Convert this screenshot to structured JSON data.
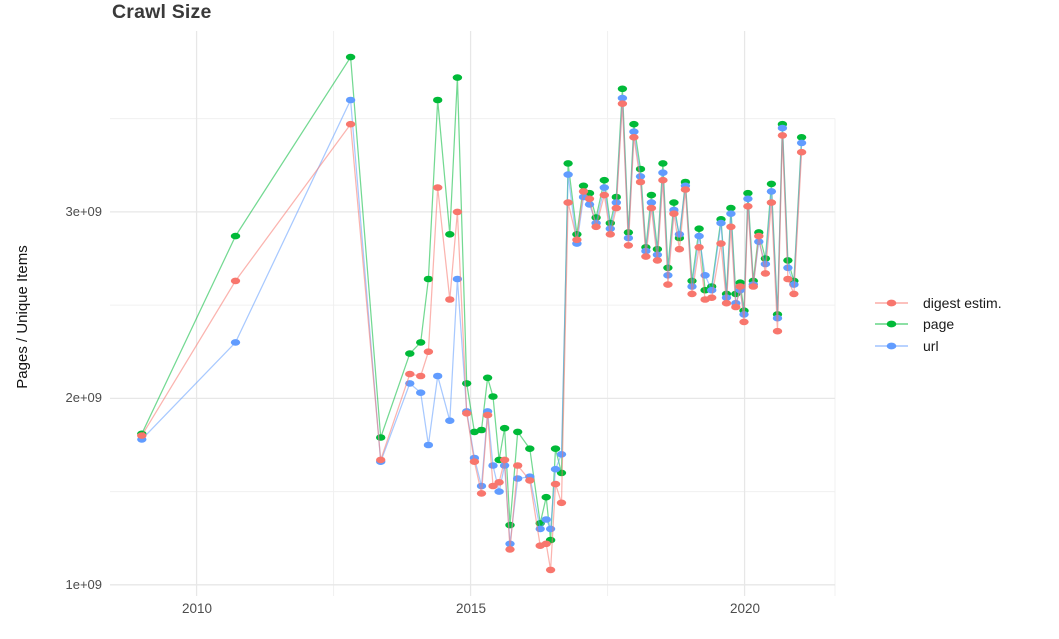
{
  "chart_data": {
    "type": "line",
    "title": "Crawl Size",
    "xlabel": "",
    "ylabel": "Pages / Unique Items",
    "y_unit": "1e+09 (billions of pages / unique items)",
    "legend_position": "right",
    "grid": true,
    "x_tick_labels": [
      "2010",
      "2015",
      "2020"
    ],
    "x_tick_values": [
      2010,
      2015,
      2020
    ],
    "y_tick_labels": [
      "1e+09",
      "2e+09",
      "3e+09"
    ],
    "y_tick_values": [
      1,
      2,
      3
    ],
    "x_minor_gridlines": [
      2012.5,
      2017.5
    ],
    "y_minor_gridlines": [
      1.5,
      2.5,
      3.5
    ],
    "xlim": [
      2008.42,
      2021.65
    ],
    "ylim": [
      0.94,
      3.97
    ],
    "x": [
      2009.0,
      2010.71,
      2012.81,
      2013.36,
      2013.89,
      2014.09,
      2014.23,
      2014.4,
      2014.62,
      2014.76,
      2014.93,
      2015.07,
      2015.2,
      2015.31,
      2015.41,
      2015.52,
      2015.62,
      2015.72,
      2015.86,
      2016.08,
      2016.27,
      2016.38,
      2016.46,
      2016.55,
      2016.66,
      2016.78,
      2016.94,
      2017.06,
      2017.17,
      2017.29,
      2017.44,
      2017.55,
      2017.66,
      2017.77,
      2017.88,
      2017.98,
      2018.1,
      2018.2,
      2018.3,
      2018.41,
      2018.51,
      2018.6,
      2018.71,
      2018.81,
      2018.92,
      2019.04,
      2019.17,
      2019.28,
      2019.4,
      2019.57,
      2019.67,
      2019.75,
      2019.84,
      2019.92,
      2019.99,
      2020.06,
      2020.16,
      2020.26,
      2020.38,
      2020.49,
      2020.6,
      2020.69,
      2020.79,
      2020.9,
      2021.04
    ],
    "series": [
      {
        "name": "digest estim.",
        "color": "#F8766D",
        "values": [
          1.8,
          2.63,
          3.47,
          1.67,
          2.13,
          2.12,
          2.25,
          3.13,
          2.53,
          3.0,
          1.92,
          1.66,
          1.49,
          1.91,
          1.53,
          1.55,
          1.67,
          1.19,
          1.64,
          1.56,
          1.21,
          1.22,
          1.08,
          1.54,
          1.44,
          3.05,
          2.85,
          3.11,
          3.07,
          2.92,
          3.09,
          2.88,
          3.02,
          3.58,
          2.82,
          3.4,
          3.16,
          2.76,
          3.02,
          2.74,
          3.17,
          2.61,
          2.99,
          2.8,
          3.12,
          2.56,
          2.81,
          2.53,
          2.54,
          2.83,
          2.51,
          2.92,
          2.49,
          2.6,
          2.41,
          3.03,
          2.6,
          2.87,
          2.67,
          3.05,
          2.36,
          3.41,
          2.64,
          2.56,
          3.32
        ]
      },
      {
        "name": "page",
        "color": "#00BA38",
        "values": [
          1.81,
          2.87,
          3.83,
          1.79,
          2.24,
          2.3,
          2.64,
          3.6,
          2.88,
          3.72,
          2.08,
          1.82,
          1.83,
          2.11,
          2.01,
          1.67,
          1.84,
          1.32,
          1.82,
          1.73,
          1.33,
          1.47,
          1.24,
          1.73,
          1.6,
          3.26,
          2.88,
          3.14,
          3.1,
          2.97,
          3.17,
          2.94,
          3.08,
          3.66,
          2.89,
          3.47,
          3.23,
          2.81,
          3.09,
          2.8,
          3.26,
          2.7,
          3.05,
          2.86,
          3.16,
          2.63,
          2.91,
          2.58,
          2.6,
          2.96,
          2.56,
          3.02,
          2.56,
          2.62,
          2.47,
          3.1,
          2.63,
          2.89,
          2.75,
          3.15,
          2.45,
          3.47,
          2.74,
          2.63,
          3.4
        ]
      },
      {
        "name": "url",
        "color": "#619CFF",
        "values": [
          1.78,
          2.3,
          3.6,
          1.66,
          2.08,
          2.03,
          1.75,
          2.12,
          1.88,
          2.64,
          1.93,
          1.68,
          1.53,
          1.93,
          1.64,
          1.5,
          1.64,
          1.22,
          1.57,
          1.58,
          1.3,
          1.35,
          1.3,
          1.62,
          1.7,
          3.2,
          2.83,
          3.08,
          3.04,
          2.94,
          3.13,
          2.91,
          3.05,
          3.61,
          2.86,
          3.43,
          3.19,
          2.79,
          3.05,
          2.77,
          3.21,
          2.66,
          3.01,
          2.88,
          3.14,
          2.6,
          2.87,
          2.66,
          2.58,
          2.94,
          2.54,
          2.99,
          2.51,
          2.58,
          2.45,
          3.07,
          2.61,
          2.84,
          2.72,
          3.11,
          2.43,
          3.45,
          2.7,
          2.61,
          3.37
        ]
      }
    ]
  }
}
